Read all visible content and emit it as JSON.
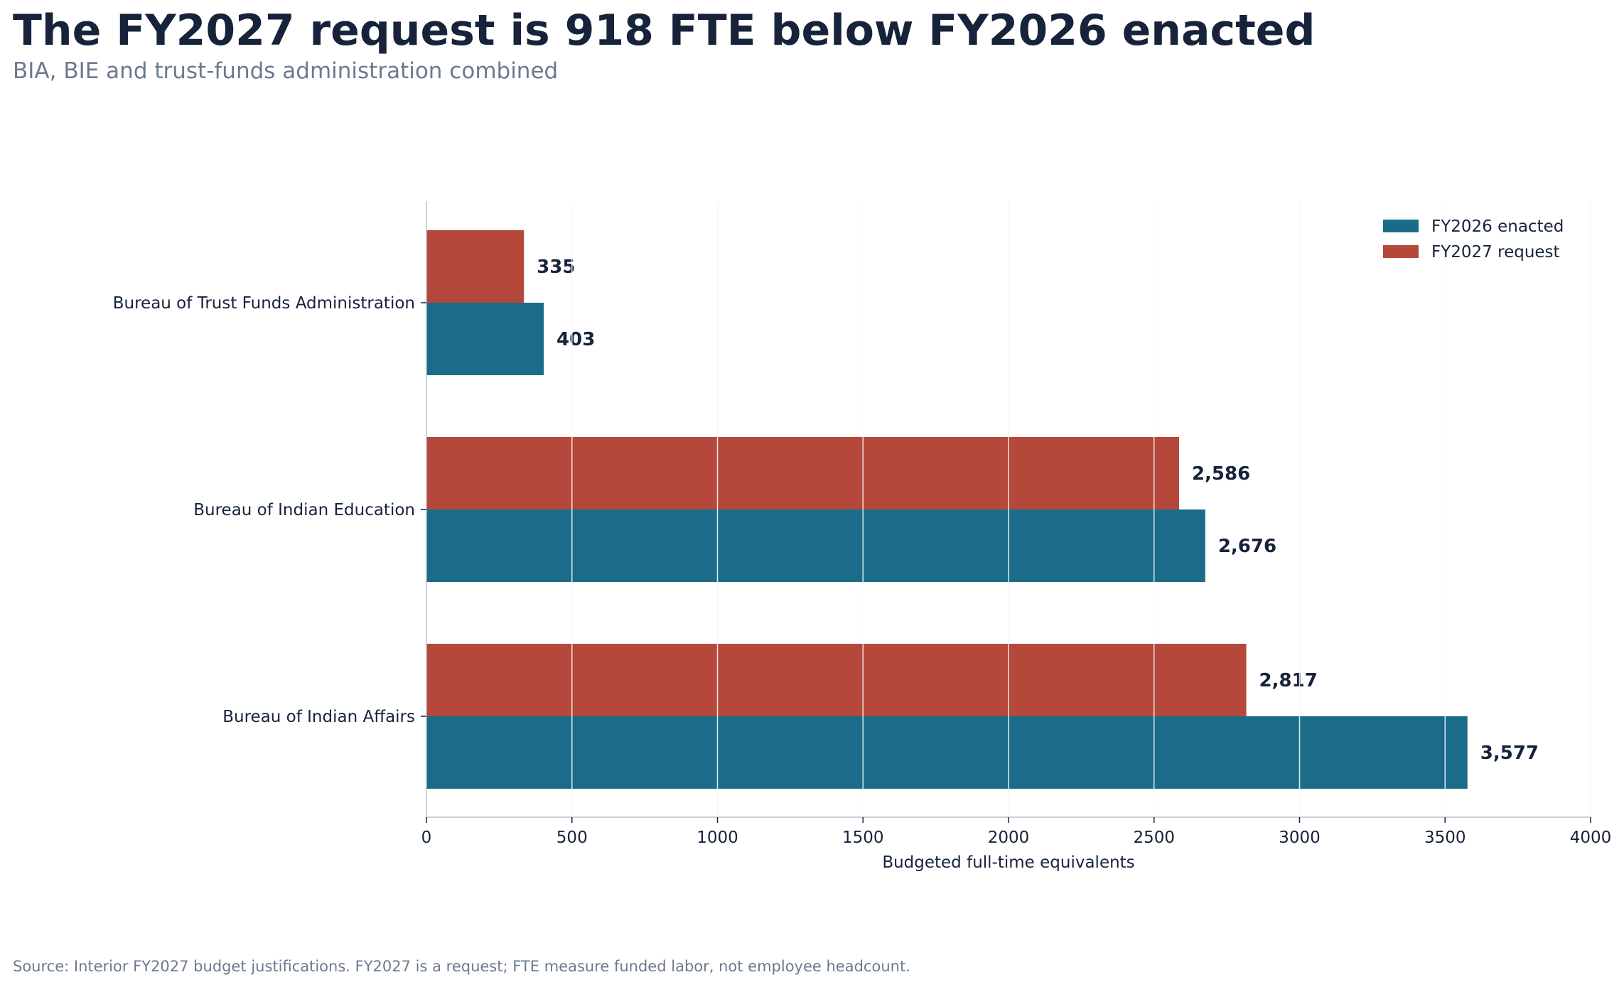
{
  "title": "The FY2027 request is 918 FTE below FY2026 enacted",
  "subtitle": "BIA, BIE and trust-funds administration combined",
  "footnote": "Source: Interior FY2027 budget justifications. FY2027 is a request; FTE measure funded labor, not employee headcount.",
  "chart_data": {
    "type": "bar",
    "orientation": "horizontal",
    "categories": [
      "Bureau of Trust Funds Administration",
      "Bureau of Indian Education",
      "Bureau of Indian Affairs"
    ],
    "series": [
      {
        "name": "FY2027 request",
        "color": "#b5483b",
        "values": [
          335,
          2586,
          2817
        ],
        "labels": [
          "335",
          "2,586",
          "2,817"
        ]
      },
      {
        "name": "FY2026 enacted",
        "color": "#1a6c89",
        "values": [
          403,
          2676,
          3577
        ],
        "labels": [
          "403",
          "2,676",
          "3,577"
        ]
      }
    ],
    "legend_order": [
      "FY2026 enacted",
      "FY2027 request"
    ],
    "legend_position": "top-right",
    "xlabel": "Budgeted full-time equivalents",
    "xlim": [
      0,
      4000
    ],
    "xticks": [
      "0",
      "500",
      "1000",
      "1500",
      "2000",
      "2500",
      "3000",
      "3500",
      "4000"
    ],
    "grid": "x",
    "gridline_color": "#d4e0e6",
    "axis_color": "#b9c3ce"
  }
}
